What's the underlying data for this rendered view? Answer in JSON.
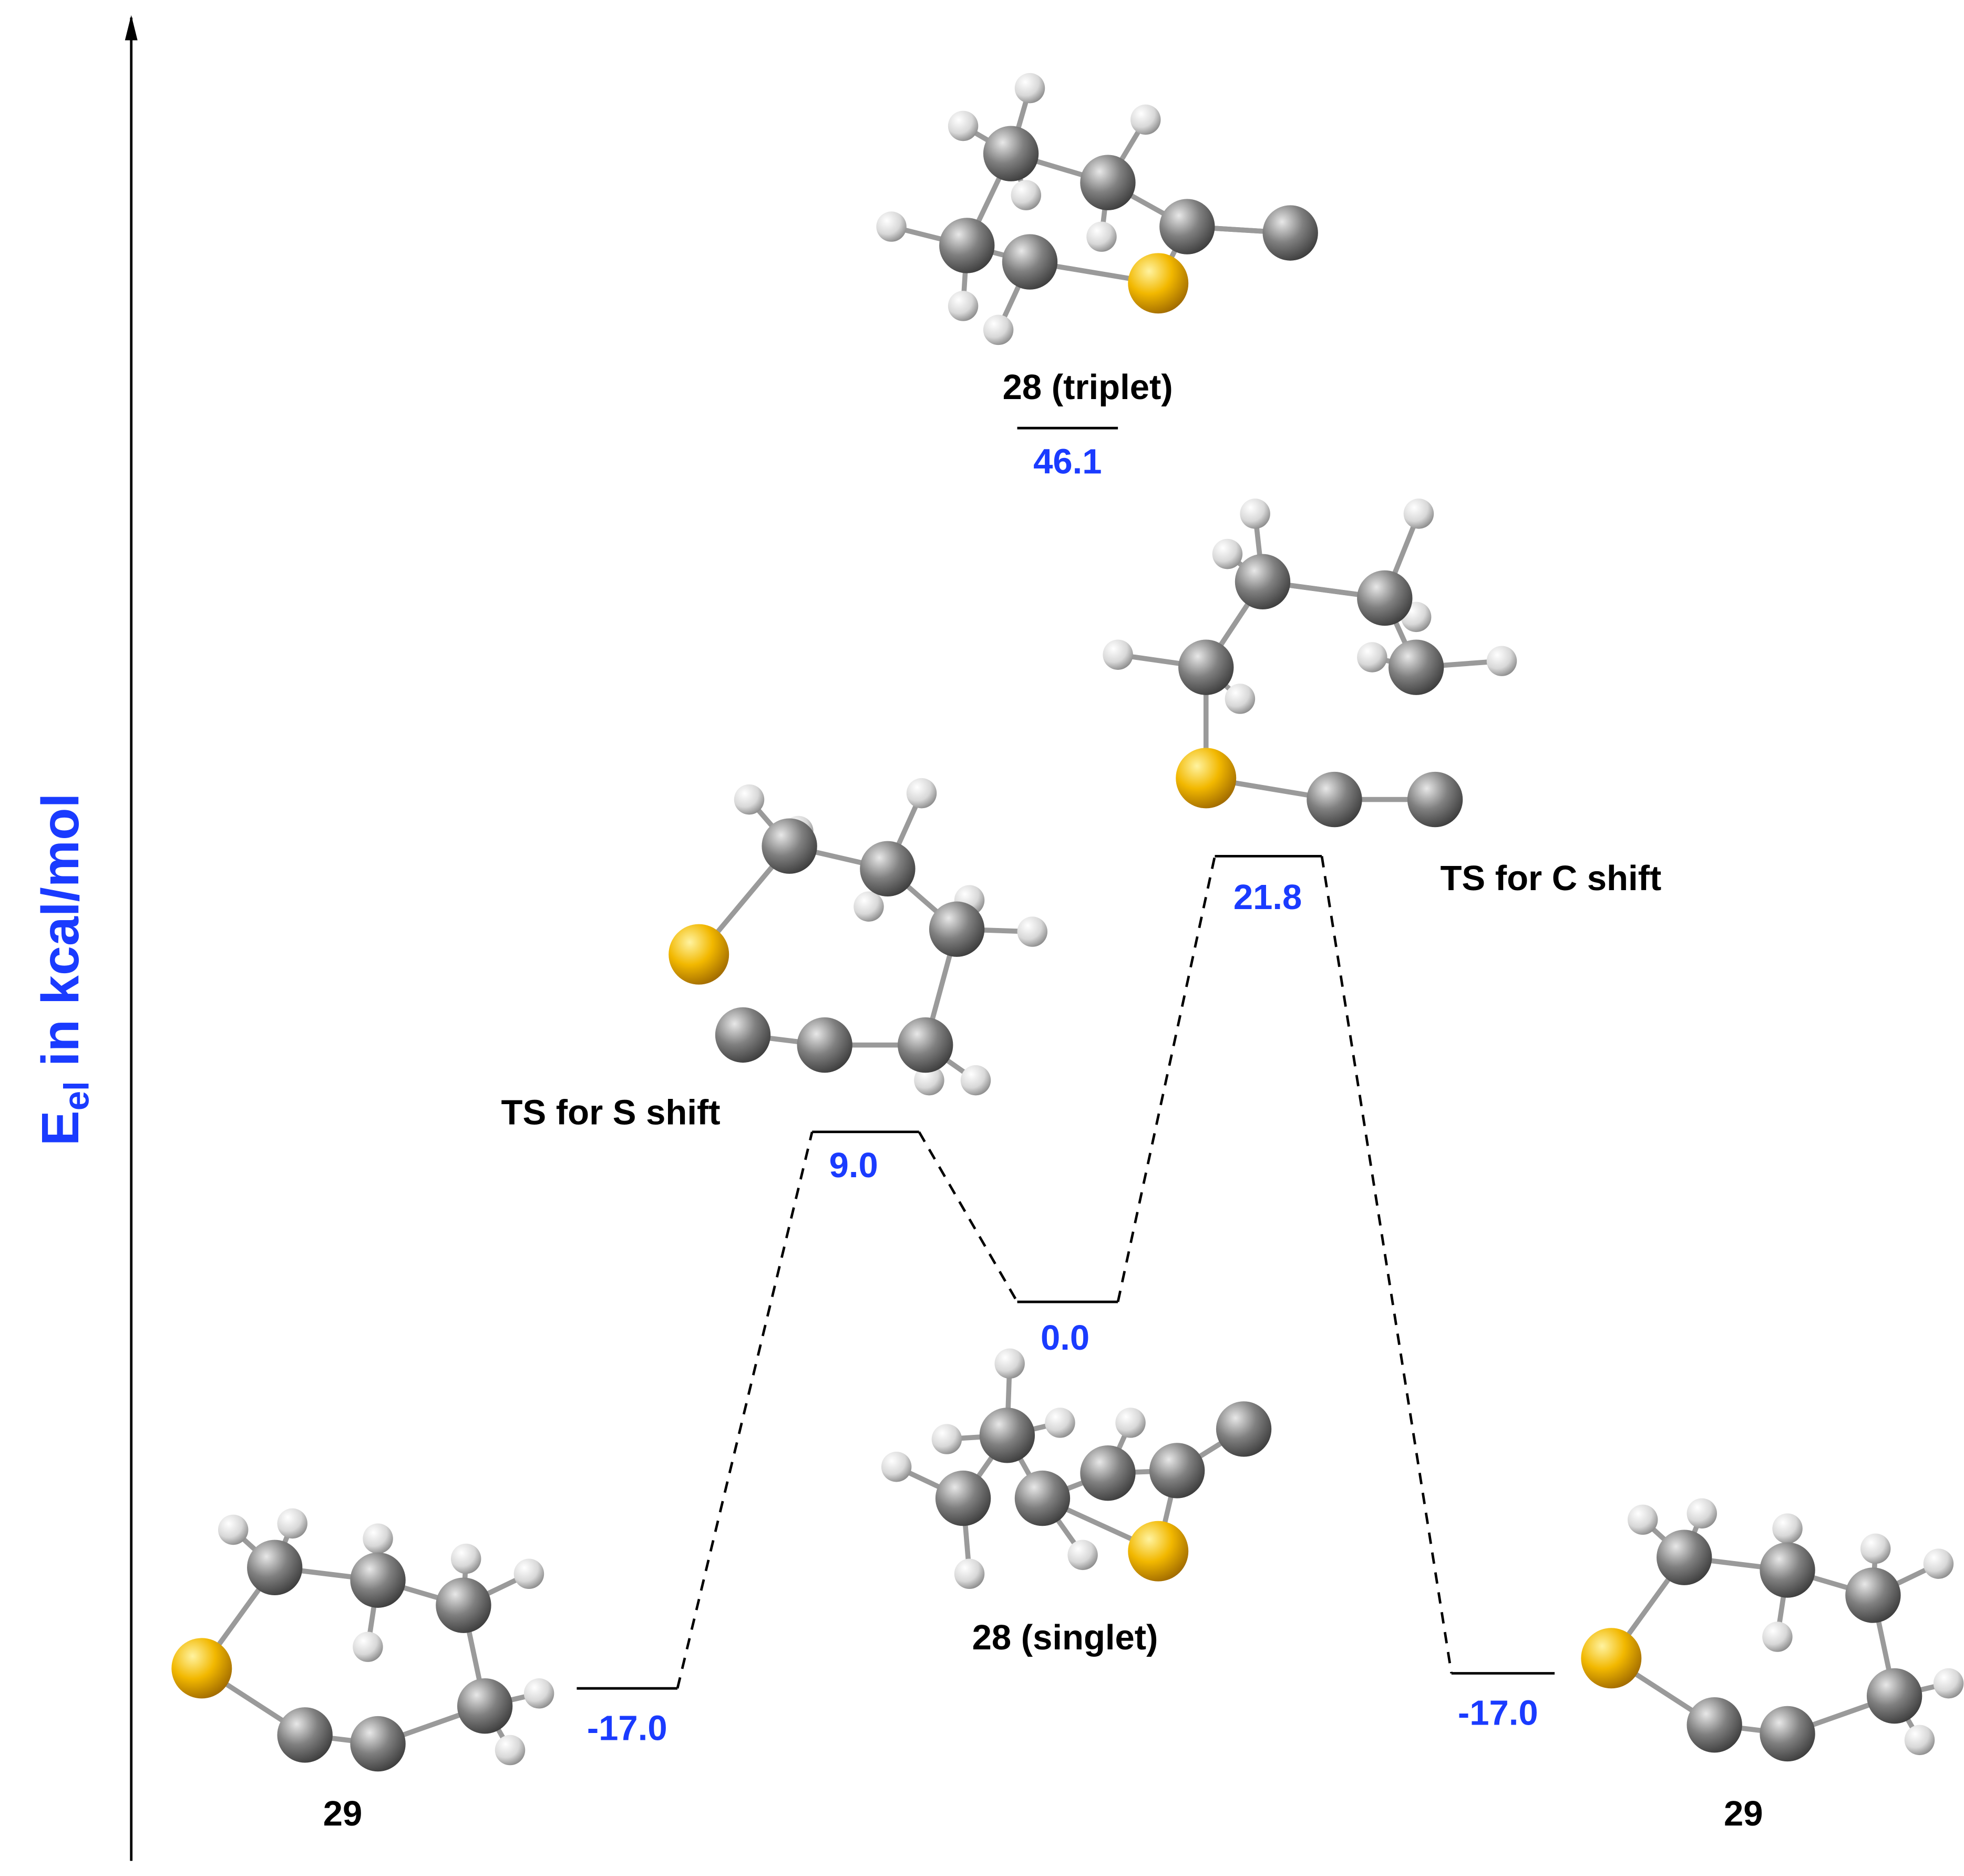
{
  "axis_label": {
    "main": "E",
    "subscript": "el",
    "unit": " in kcal/mol"
  },
  "states": [
    {
      "name": "29",
      "energy": "-17.0"
    },
    {
      "name": "TS for S shift",
      "energy": "9.0"
    },
    {
      "name": "28 (singlet)",
      "energy": "0.0"
    },
    {
      "name": "TS for C shift",
      "energy": "21.8"
    },
    {
      "name": "29",
      "energy": "-17.0"
    },
    {
      "name": "28 (triplet)",
      "energy": "46.1"
    }
  ]
}
